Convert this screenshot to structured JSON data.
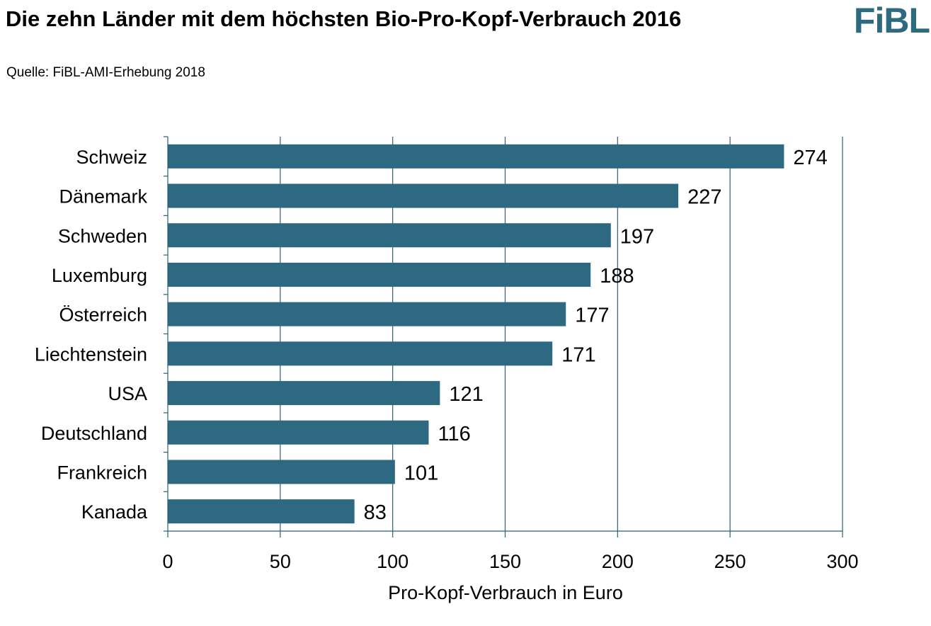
{
  "header": {
    "title": "Die zehn Länder mit dem höchsten Bio-Pro-Kopf-Verbrauch 2016",
    "subtitle": "Quelle: FiBL-AMI-Erhebung 2018",
    "logo": "FiBL"
  },
  "colors": {
    "bar": "#2d6a82",
    "grid": "#2f5f73",
    "logo": "#2d6a80"
  },
  "chart_data": {
    "type": "bar",
    "orientation": "horizontal",
    "title": "Die zehn Länder mit dem höchsten Bio-Pro-Kopf-Verbrauch 2016",
    "subtitle": "Quelle: FiBL-AMI-Erhebung 2018",
    "categories": [
      "Schweiz",
      "Dänemark",
      "Schweden",
      "Luxemburg",
      "Österreich",
      "Liechtenstein",
      "USA",
      "Deutschland",
      "Frankreich",
      "Kanada"
    ],
    "values": [
      274,
      227,
      197,
      188,
      177,
      171,
      121,
      116,
      101,
      83
    ],
    "value_labels": [
      "274",
      "227",
      "197",
      "188",
      "177",
      "171",
      "121",
      "116",
      "101",
      "83"
    ],
    "xlabel": "Pro-Kopf-Verbrauch in Euro",
    "ylabel": "",
    "xlim": [
      0,
      300
    ],
    "xticks": [
      "0",
      "50",
      "100",
      "150",
      "200",
      "250",
      "300"
    ],
    "grid": true,
    "legend": "none"
  }
}
